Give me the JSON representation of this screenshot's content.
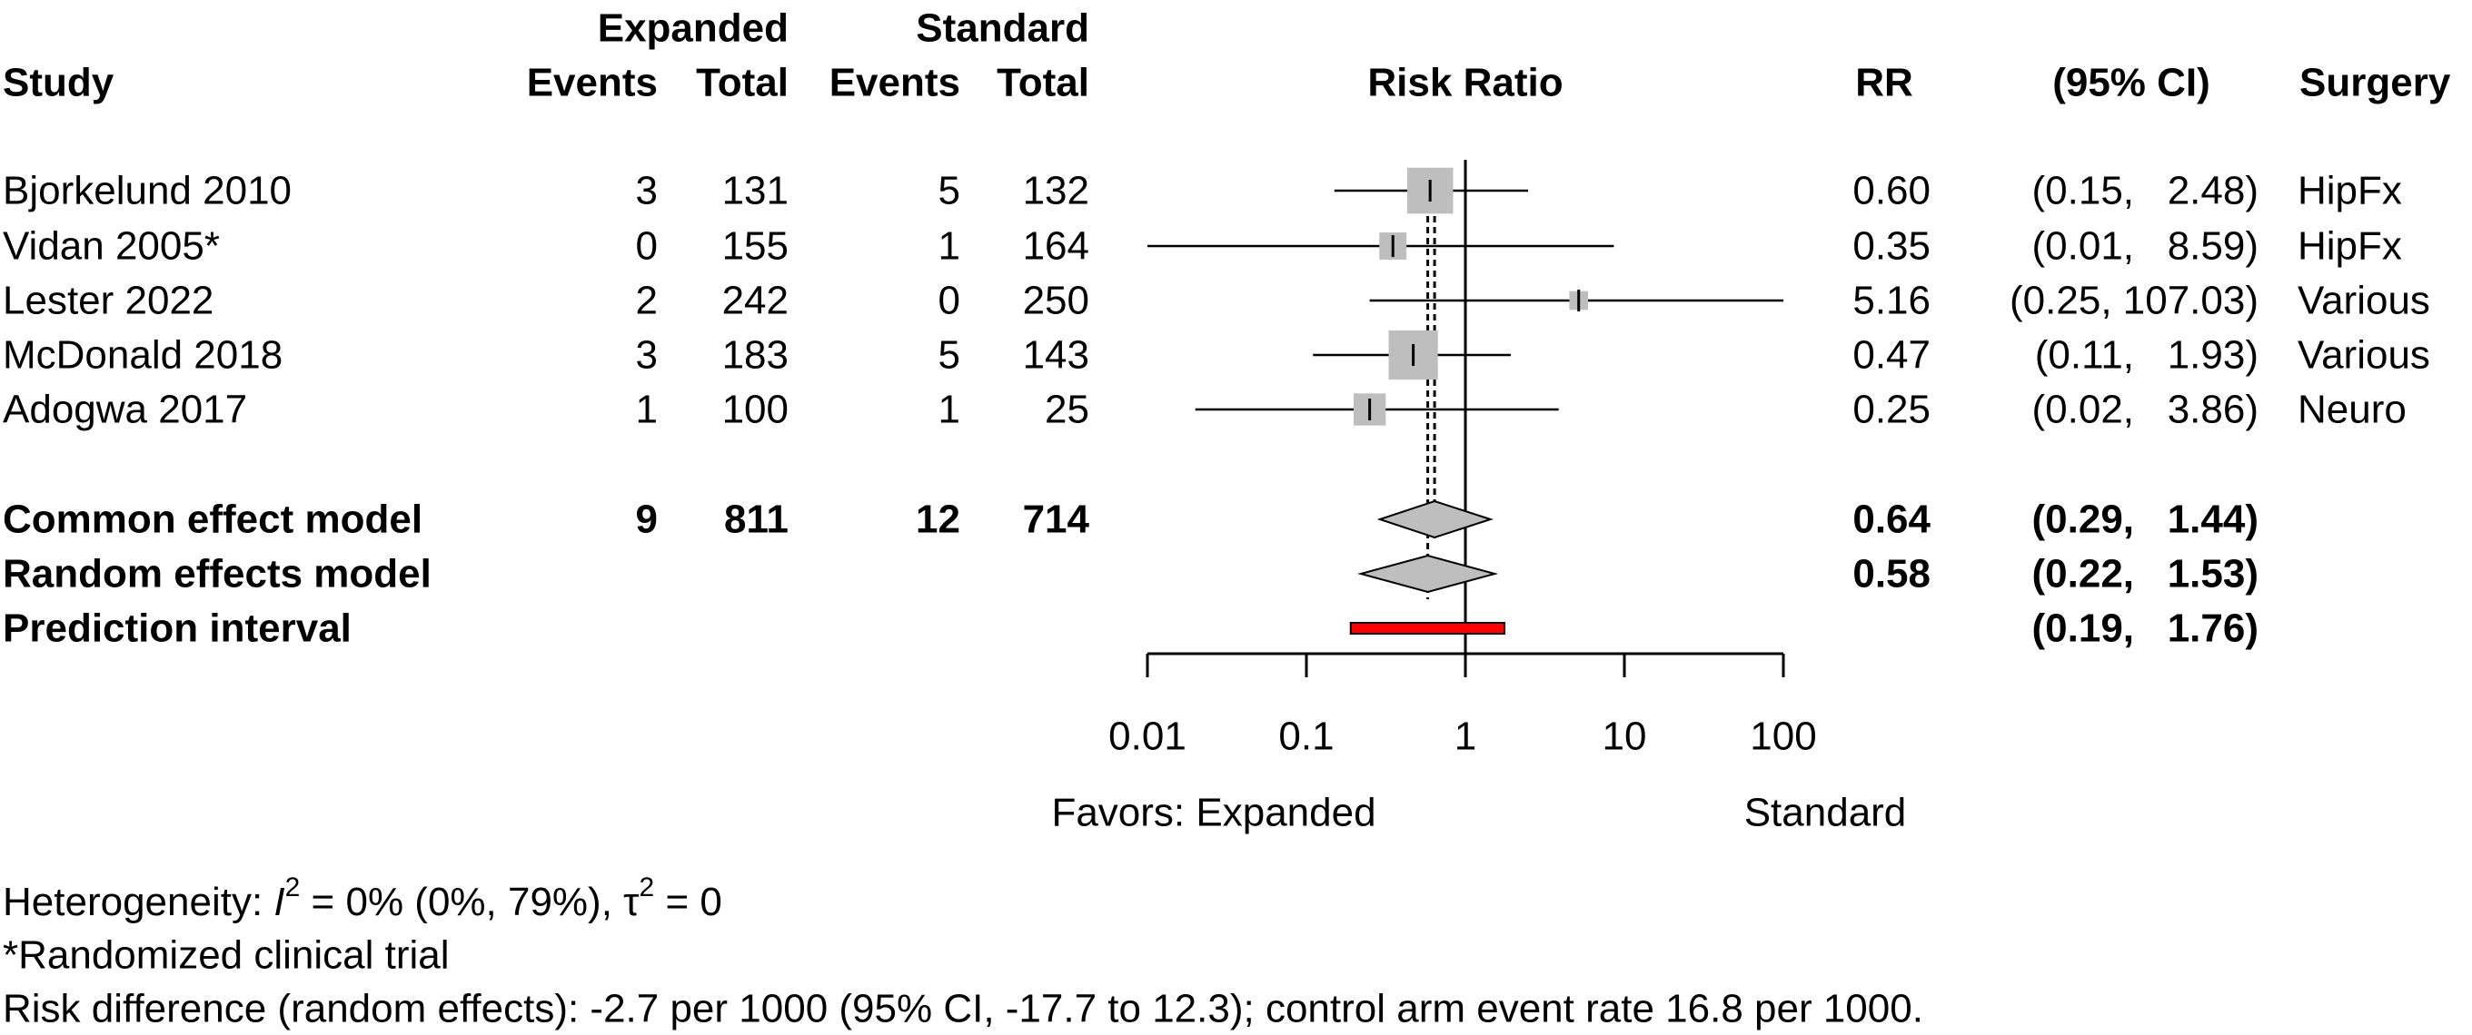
{
  "chart_data": {
    "type": "forest",
    "headers": {
      "experimental_group": "Expanded",
      "control_group": "Standard",
      "study": "Study",
      "events": "Events",
      "total": "Total",
      "plot": "Risk Ratio",
      "rr": "RR",
      "ci": "(95% CI)",
      "subgroup": "Surgery"
    },
    "studies": [
      {
        "name": "Bjorkelund 2010",
        "e_events": "3",
        "e_total": "131",
        "c_events": "5",
        "c_total": "132",
        "rr_text": "0.60",
        "ci_text": "(0.15,   2.48)",
        "surgery": "HipFx",
        "rr": 0.6,
        "lower": 0.15,
        "upper": 2.48,
        "weight": 34.0
      },
      {
        "name": "Vidan 2005*",
        "e_events": "0",
        "e_total": "155",
        "c_events": "1",
        "c_total": "164",
        "rr_text": "0.35",
        "ci_text": "(0.01,   8.59)",
        "surgery": "HipFx",
        "rr": 0.35,
        "lower": 0.01,
        "upper": 8.59,
        "weight": 9.0
      },
      {
        "name": "Lester 2022",
        "e_events": "2",
        "e_total": "242",
        "c_events": "0",
        "c_total": "250",
        "rr_text": "5.16",
        "ci_text": "(0.25, 107.03)",
        "surgery": "Various",
        "rr": 5.16,
        "lower": 0.25,
        "upper": 107.03,
        "weight": 3.0
      },
      {
        "name": "McDonald 2018",
        "e_events": "3",
        "e_total": "183",
        "c_events": "5",
        "c_total": "143",
        "rr_text": "0.47",
        "ci_text": "(0.11,   1.93)",
        "surgery": "Various",
        "rr": 0.47,
        "lower": 0.11,
        "upper": 1.93,
        "weight": 40.0
      },
      {
        "name": "Adogwa 2017",
        "e_events": "1",
        "e_total": "100",
        "c_events": "1",
        "c_total": "25",
        "rr_text": "0.25",
        "ci_text": "(0.02,   3.86)",
        "surgery": "Neuro",
        "rr": 0.25,
        "lower": 0.02,
        "upper": 3.86,
        "weight": 14.0
      }
    ],
    "common_effect": {
      "label": "Common effect model",
      "e_events": "9",
      "e_total": "811",
      "c_events": "12",
      "c_total": "714",
      "rr_text": "0.64",
      "ci_text": "(0.29,   1.44)",
      "rr": 0.64,
      "lower": 0.29,
      "upper": 1.44
    },
    "random_effects": {
      "label": "Random effects model",
      "rr_text": "0.58",
      "ci_text": "(0.22,   1.53)",
      "rr": 0.58,
      "lower": 0.22,
      "upper": 1.53
    },
    "prediction_interval": {
      "label": "Prediction interval",
      "ci_text": "(0.19,   1.76)",
      "lower": 0.19,
      "upper": 1.76
    },
    "x_axis": {
      "scale": "log",
      "ticks": [
        0.01,
        0.1,
        1,
        10,
        100
      ],
      "tick_labels": [
        "0.01",
        "0.1",
        "1",
        "10",
        "100"
      ],
      "xlim": [
        0.01,
        100
      ]
    },
    "favors_left": "Favors: Expanded",
    "favors_right": "Standard",
    "footnotes": {
      "heterogeneity_prefix": "Heterogeneity: ",
      "i2_symbol": "I",
      "i2_sup": "2",
      "i2_value": " = 0% (0%, 79%), ",
      "tau_symbol": "τ",
      "tau_sup": "2",
      "tau_value": " = 0",
      "rct_note": "*Randomized clinical trial",
      "risk_difference": "Risk difference (random effects): -2.7 per 1000 (95% CI, -17.7 to 12.3); control arm event rate 16.8 per 1000."
    },
    "colors": {
      "square": "#bebebe",
      "diamond": "#bebebe",
      "prediction": "#ff0000",
      "line": "#000000"
    }
  }
}
